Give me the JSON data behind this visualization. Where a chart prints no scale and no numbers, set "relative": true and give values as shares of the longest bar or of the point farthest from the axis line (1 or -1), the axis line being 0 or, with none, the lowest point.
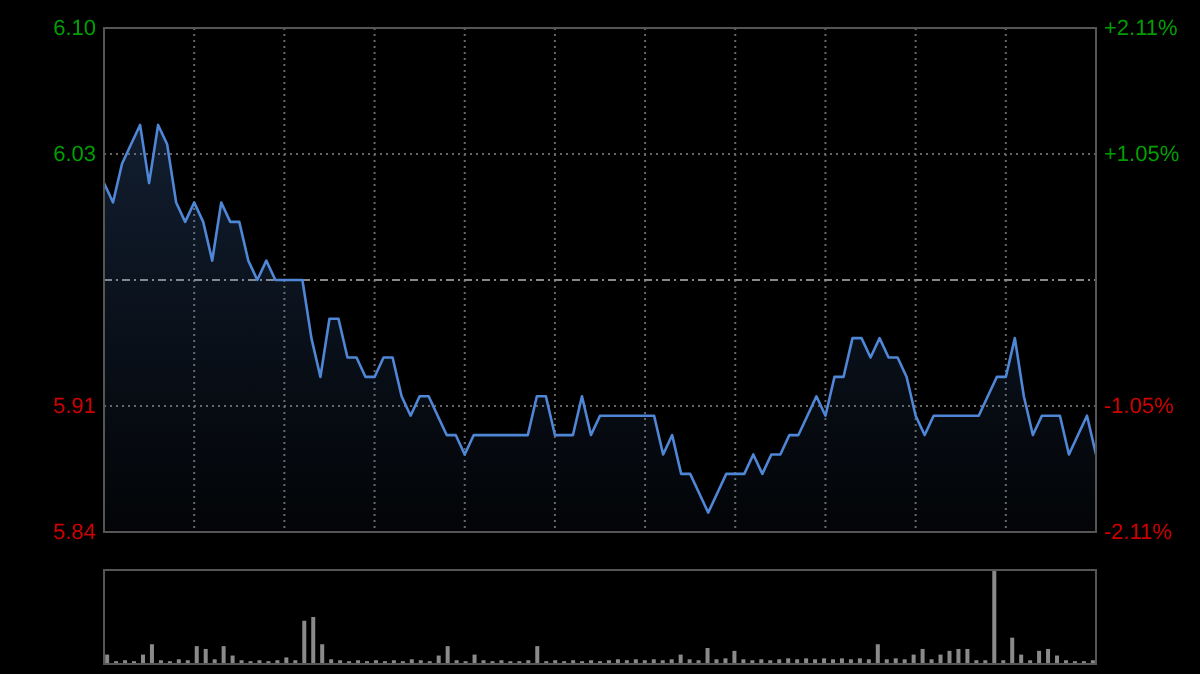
{
  "chart_data": [
    {
      "type": "area",
      "color": "#4f86d6",
      "grid": true,
      "ref_lines": [
        {
          "axis": "y",
          "value": 5.97,
          "color": "#888888",
          "line_style": "dashdot"
        }
      ],
      "categories": [
        null,
        null,
        null,
        null,
        null,
        null,
        null,
        null,
        null,
        null,
        null,
        null,
        null,
        null,
        null,
        null,
        null,
        null,
        null,
        null,
        null,
        null,
        null,
        null,
        null,
        null,
        null,
        null,
        null,
        null,
        null,
        null,
        null,
        null,
        null,
        null,
        null,
        null,
        null,
        null,
        null,
        null,
        null,
        null,
        null,
        null,
        null,
        null,
        null,
        null,
        null,
        null,
        null,
        null,
        null,
        null,
        null,
        null,
        null,
        null,
        null,
        null,
        null,
        null,
        null,
        null,
        null,
        null,
        null,
        null,
        null,
        null,
        null,
        null,
        null,
        null,
        null,
        null,
        null,
        null,
        null,
        null,
        null,
        null,
        null,
        null,
        null,
        null,
        null,
        null,
        null,
        null,
        null,
        null,
        null,
        null,
        null,
        null,
        null,
        null,
        null,
        null,
        null,
        null,
        null,
        null,
        null,
        null,
        null,
        null,
        null
      ],
      "values": [
        6.02,
        6.01,
        6.03,
        6.04,
        6.05,
        6.02,
        6.05,
        6.04,
        6.01,
        6.0,
        6.01,
        6.0,
        5.98,
        6.01,
        6.0,
        6.0,
        5.98,
        5.97,
        5.98,
        5.97,
        5.97,
        5.97,
        5.97,
        5.94,
        5.92,
        5.95,
        5.95,
        5.93,
        5.93,
        5.92,
        5.92,
        5.93,
        5.93,
        5.91,
        5.9,
        5.91,
        5.91,
        5.9,
        5.89,
        5.89,
        5.88,
        5.89,
        5.89,
        5.89,
        5.89,
        5.89,
        5.89,
        5.89,
        5.91,
        5.91,
        5.89,
        5.89,
        5.89,
        5.91,
        5.89,
        5.9,
        5.9,
        5.9,
        5.9,
        5.9,
        5.9,
        5.9,
        5.88,
        5.89,
        5.87,
        5.87,
        5.86,
        5.85,
        5.86,
        5.87,
        5.87,
        5.87,
        5.88,
        5.87,
        5.88,
        5.88,
        5.89,
        5.89,
        5.9,
        5.91,
        5.9,
        5.92,
        5.92,
        5.94,
        5.94,
        5.93,
        5.94,
        5.93,
        5.93,
        5.92,
        5.9,
        5.89,
        5.9,
        5.9,
        5.9,
        5.9,
        5.9,
        5.9,
        5.91,
        5.92,
        5.92,
        5.94,
        5.91,
        5.89,
        5.9,
        5.9,
        5.9,
        5.88,
        5.89,
        5.9,
        5.88
      ],
      "ylim": [
        5.84,
        6.1
      ],
      "yticks": [
        {
          "value": 5.84,
          "label": "5.84"
        },
        {
          "value": 5.905,
          "label": "5.91"
        },
        {
          "value": 6.035,
          "label": "6.03"
        },
        {
          "value": 6.1,
          "label": "6.10"
        }
      ],
      "y2lim": [
        -2.11,
        2.11
      ],
      "y2ticks": [
        {
          "value": -2.11,
          "label": "-2.11%"
        },
        {
          "value": -1.055,
          "label": "-1.05%"
        },
        {
          "value": 1.055,
          "label": "+1.05%"
        },
        {
          "value": 2.11,
          "label": "+2.11%"
        }
      ]
    },
    {
      "type": "bar",
      "color": "#8a8a8a",
      "relative": true,
      "categories": [
        null,
        null,
        null,
        null,
        null,
        null,
        null,
        null,
        null,
        null,
        null,
        null,
        null,
        null,
        null,
        null,
        null,
        null,
        null,
        null,
        null,
        null,
        null,
        null,
        null,
        null,
        null,
        null,
        null,
        null,
        null,
        null,
        null,
        null,
        null,
        null,
        null,
        null,
        null,
        null,
        null,
        null,
        null,
        null,
        null,
        null,
        null,
        null,
        null,
        null,
        null,
        null,
        null,
        null,
        null,
        null,
        null,
        null,
        null,
        null,
        null,
        null,
        null,
        null,
        null,
        null,
        null,
        null,
        null,
        null,
        null,
        null,
        null,
        null,
        null,
        null,
        null,
        null,
        null,
        null,
        null,
        null,
        null,
        null,
        null,
        null,
        null,
        null,
        null,
        null,
        null,
        null,
        null,
        null,
        null,
        null,
        null,
        null,
        null,
        null,
        null,
        null,
        null,
        null,
        null,
        null,
        null,
        null,
        null,
        null,
        null
      ],
      "values": [
        0.1,
        0.03,
        0.04,
        0.03,
        0.1,
        0.21,
        0.04,
        0.03,
        0.05,
        0.04,
        0.19,
        0.16,
        0.05,
        0.19,
        0.09,
        0.04,
        0.03,
        0.04,
        0.03,
        0.04,
        0.07,
        0.04,
        0.46,
        0.5,
        0.21,
        0.05,
        0.04,
        0.03,
        0.04,
        0.03,
        0.04,
        0.03,
        0.04,
        0.03,
        0.05,
        0.04,
        0.03,
        0.09,
        0.19,
        0.04,
        0.03,
        0.1,
        0.04,
        0.03,
        0.04,
        0.03,
        0.03,
        0.04,
        0.19,
        0.03,
        0.04,
        0.03,
        0.04,
        0.03,
        0.04,
        0.03,
        0.04,
        0.05,
        0.04,
        0.05,
        0.04,
        0.05,
        0.04,
        0.05,
        0.1,
        0.05,
        0.04,
        0.17,
        0.05,
        0.06,
        0.14,
        0.05,
        0.04,
        0.05,
        0.04,
        0.05,
        0.06,
        0.05,
        0.06,
        0.05,
        0.06,
        0.05,
        0.06,
        0.05,
        0.06,
        0.05,
        0.21,
        0.05,
        0.06,
        0.05,
        0.1,
        0.16,
        0.05,
        0.1,
        0.14,
        0.16,
        0.16,
        0.04,
        0.04,
        1,
        0.04,
        0.28,
        0.1,
        0.04,
        0.14,
        0.16,
        0.09,
        0.04,
        0.03,
        0.03,
        0.04
      ]
    }
  ]
}
